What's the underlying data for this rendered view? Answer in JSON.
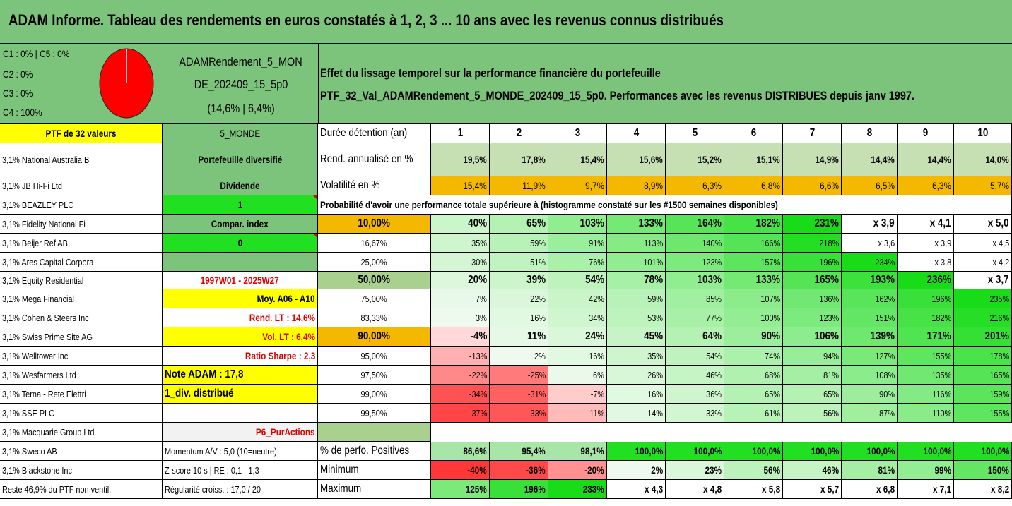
{
  "title": "ADAM Informe. Tableau des rendements en euros constatés à 1, 2, 3 ... 10 ans avec les revenus connus distribués",
  "header": {
    "allocation": [
      "C1 : 0% | C5 : 0%",
      "C2 : 0%",
      "C3 : 0%",
      "C4 : 100%"
    ],
    "pie_color": "#ff0000",
    "fund_name_1": "ADAMRendement_5_MON",
    "fund_name_2": "DE_202409_15_5p0",
    "fund_stats": "(14,6% | 6,4%)",
    "effect_line1": "Effet du lissage temporel sur la performance financière du portefeuille",
    "effect_line2": "PTF_32_Val_ADAMRendement_5_MONDE_202409_15_5p0. Performances avec les revenus DISTRIBUES depuis janv 1997."
  },
  "portfolio_label": "PTF de 32 valeurs",
  "holdings": [
    "3,1% National Australia B",
    "3,1% JB Hi-Fi Ltd",
    "3,1% BEAZLEY PLC",
    "3,1% Fidelity National Fi",
    "3,1% Beijer Ref AB",
    "3,1% Ares Capital Corpora",
    "3,1% Equity Residential",
    "3,1% Mega Financial",
    "3,1% Cohen & Steers Inc",
    "3,1% Swiss Prime Site AG",
    "3,1% Welltower Inc",
    "3,1% Wesfarmers Ltd",
    "3,1% Terna - Rete Elettri",
    "3,1% SSE PLC",
    "3,1% Macquarie Group Ltd",
    "3,1% Sweco AB",
    "3,1% Blackstone Inc",
    "Reste 46,9% du PTF non ventil."
  ],
  "info_column": [
    "5_MONDE",
    "Portefeuille diversifié",
    "Dividende",
    "1",
    "Compar. index",
    "0",
    "",
    "1997W01 - 2025W27",
    "Moy. A06 - A10",
    "Rend. LT : 14,6%",
    "Vol. LT : 6,4%",
    "Ratio Sharpe : 2,3",
    "Note ADAM : 17,8",
    "1_div. distribué",
    "",
    "P6_PurActions",
    "Momentum A/V : 5,0 (10=neutre)",
    "Z-score 10 s | RE : 0,1 |-1,3",
    "Régularité croiss. : 17,0 / 20"
  ],
  "table": {
    "duration_label": "Durée détention (an)",
    "years": [
      "1",
      "2",
      "3",
      "4",
      "5",
      "6",
      "7",
      "8",
      "9",
      "10"
    ],
    "return_label": "Rend. annualisé en %",
    "returns": [
      "19,5%",
      "17,8%",
      "15,4%",
      "15,6%",
      "15,2%",
      "15,1%",
      "14,9%",
      "14,4%",
      "14,4%",
      "14,0%"
    ],
    "volatility_label": "Volatilité en %",
    "volatility": [
      "15,4%",
      "11,9%",
      "9,7%",
      "8,9%",
      "6,3%",
      "6,8%",
      "6,6%",
      "6,5%",
      "6,3%",
      "5,7%"
    ],
    "probability_title": "Probabilité d'avoir une performance totale supérieure à (histogramme constaté sur les #1500 semaines disponibles)",
    "probabilities": [
      {
        "p": "10,00%",
        "v": [
          "40%",
          "65%",
          "103%",
          "133%",
          "164%",
          "182%",
          "231%",
          "x 3,9",
          "x 4,1",
          "x 5,0"
        ]
      },
      {
        "p": "16,67%",
        "v": [
          "35%",
          "59%",
          "91%",
          "113%",
          "140%",
          "166%",
          "218%",
          "x 3,6",
          "x 3,9",
          "x 4,5"
        ]
      },
      {
        "p": "25,00%",
        "v": [
          "30%",
          "51%",
          "76%",
          "101%",
          "123%",
          "157%",
          "196%",
          "234%",
          "x 3,8",
          "x 4,2"
        ]
      },
      {
        "p": "50,00%",
        "v": [
          "20%",
          "39%",
          "54%",
          "78%",
          "103%",
          "133%",
          "165%",
          "193%",
          "236%",
          "x 3,7"
        ]
      },
      {
        "p": "75,00%",
        "v": [
          "7%",
          "22%",
          "42%",
          "59%",
          "85%",
          "107%",
          "136%",
          "162%",
          "196%",
          "235%"
        ]
      },
      {
        "p": "83,33%",
        "v": [
          "3%",
          "16%",
          "34%",
          "53%",
          "77%",
          "100%",
          "123%",
          "151%",
          "182%",
          "216%"
        ]
      },
      {
        "p": "90,00%",
        "v": [
          "-4%",
          "11%",
          "24%",
          "45%",
          "64%",
          "90%",
          "106%",
          "139%",
          "171%",
          "201%"
        ]
      },
      {
        "p": "95,00%",
        "v": [
          "-13%",
          "2%",
          "16%",
          "35%",
          "54%",
          "74%",
          "94%",
          "127%",
          "155%",
          "178%"
        ]
      },
      {
        "p": "97,50%",
        "v": [
          "-22%",
          "-25%",
          "6%",
          "26%",
          "46%",
          "68%",
          "81%",
          "108%",
          "135%",
          "165%"
        ]
      },
      {
        "p": "99,00%",
        "v": [
          "-34%",
          "-31%",
          "-7%",
          "16%",
          "36%",
          "65%",
          "65%",
          "90%",
          "116%",
          "159%"
        ]
      },
      {
        "p": "99,50%",
        "v": [
          "-37%",
          "-33%",
          "-11%",
          "14%",
          "33%",
          "61%",
          "56%",
          "87%",
          "110%",
          "155%"
        ]
      }
    ],
    "positive_label": "% de perfo. Positives",
    "positive": [
      "86,6%",
      "95,4%",
      "98,1%",
      "100,0%",
      "100,0%",
      "100,0%",
      "100,0%",
      "100,0%",
      "100,0%",
      "100,0%"
    ],
    "min_label": "Minimum",
    "minimum": [
      "-40%",
      "-36%",
      "-20%",
      "2%",
      "23%",
      "56%",
      "46%",
      "81%",
      "99%",
      "150%"
    ],
    "max_label": "Maximum",
    "maximum": [
      "125%",
      "196%",
      "233%",
      "x 4,3",
      "x 4,8",
      "x 5,8",
      "x 5,7",
      "x 6,8",
      "x 7,1",
      "x 8,2"
    ]
  },
  "colors": {
    "header_green": "#7cc47c",
    "highlight_yellow": "#ffff00",
    "signal_lime": "#21e021",
    "volatility_orange": "#f5b800",
    "negative_red": "#f04040",
    "positive_green": "#10d010"
  }
}
